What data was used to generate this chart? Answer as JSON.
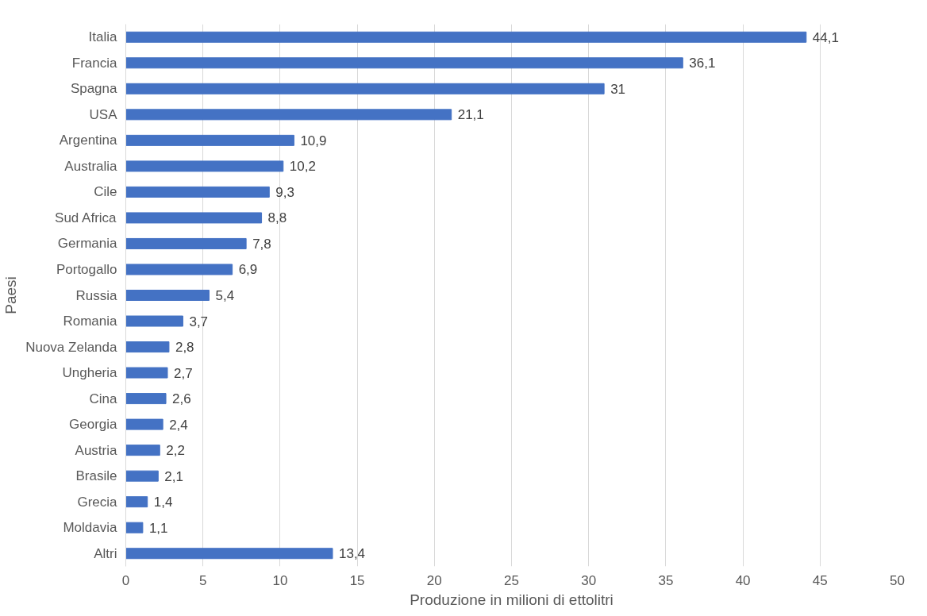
{
  "chart_data": {
    "type": "bar",
    "orientation": "horizontal",
    "xlabel": "Produzione in milioni di ettolitri",
    "ylabel": "Paesi",
    "categories": [
      "Italia",
      "Francia",
      "Spagna",
      "USA",
      "Argentina",
      "Australia",
      "Cile",
      "Sud Africa",
      "Germania",
      "Portogallo",
      "Russia",
      "Romania",
      "Nuova Zelanda",
      "Ungheria",
      "Cina",
      "Georgia",
      "Austria",
      "Brasile",
      "Grecia",
      "Moldavia",
      "Altri"
    ],
    "values": [
      44.1,
      36.1,
      31,
      21.1,
      10.9,
      10.2,
      9.3,
      8.8,
      7.8,
      6.9,
      5.4,
      3.7,
      2.8,
      2.7,
      2.6,
      2.4,
      2.2,
      2.1,
      1.4,
      1.1,
      13.4
    ],
    "value_labels": [
      "44,1",
      "36,1",
      "31",
      "21,1",
      "10,9",
      "10,2",
      "9,3",
      "8,8",
      "7,8",
      "6,9",
      "5,4",
      "3,7",
      "2,8",
      "2,7",
      "2,6",
      "2,4",
      "2,2",
      "2,1",
      "1,4",
      "1,1",
      "13,4"
    ],
    "color": "#4472c4",
    "xlim": [
      0,
      50
    ],
    "xticks": [
      0,
      5,
      10,
      15,
      20,
      25,
      30,
      35,
      40,
      45,
      50
    ],
    "grid": "x"
  }
}
